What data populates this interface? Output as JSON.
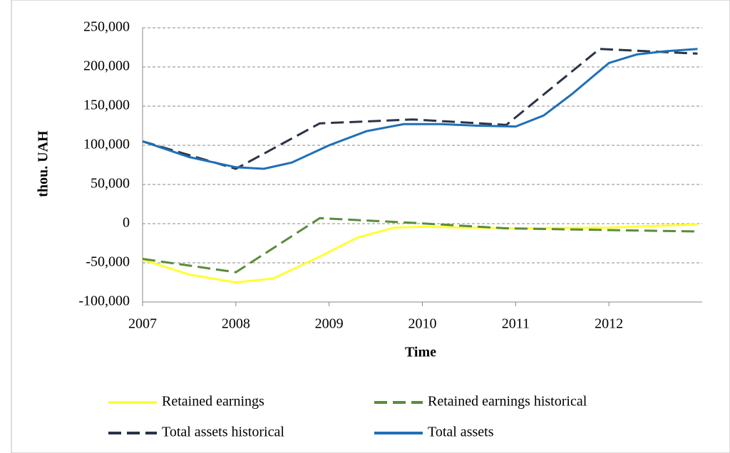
{
  "chart_data": {
    "type": "line",
    "xlabel": "Time",
    "ylabel": "thou. UAH",
    "xlim": [
      2007,
      2013
    ],
    "xticks": [
      2007,
      2008,
      2009,
      2010,
      2011,
      2012
    ],
    "ylim": [
      -100000,
      250000
    ],
    "yticks": [
      {
        "value": -100000,
        "label": "-100,000"
      },
      {
        "value": -50000,
        "label": "-50,000"
      },
      0,
      {
        "value": 50000,
        "label": "50,000"
      },
      {
        "value": 100000,
        "label": "100,000"
      },
      {
        "value": 150000,
        "label": "150,000"
      },
      {
        "value": 200000,
        "label": "200,000"
      },
      {
        "value": 250000,
        "label": "250,000"
      }
    ],
    "grid": true,
    "legend": "bottom",
    "series": [
      {
        "name": "Retained earnings",
        "color": "#ffff33",
        "style": "solid",
        "x": [
          2007,
          2007.5,
          2008,
          2008.4,
          2008.9,
          2009.3,
          2009.7,
          2010,
          2011,
          2012,
          2012.95
        ],
        "values": [
          -46000,
          -65000,
          -75000,
          -70000,
          -42000,
          -18000,
          -5000,
          -4000,
          -6000,
          -5000,
          -1000
        ]
      },
      {
        "name": "Retained earnings historical",
        "color": "#5b8c3a",
        "style": "dashed",
        "x": [
          2007,
          2008,
          2008.9,
          2009.9,
          2010.9,
          2011.9,
          2012.95
        ],
        "values": [
          -45000,
          -62000,
          7000,
          1000,
          -6000,
          -8000,
          -10000
        ]
      },
      {
        "name": "Total assets historical",
        "color": "#2b3347",
        "style": "dashed",
        "x": [
          2007,
          2008,
          2008.9,
          2009.9,
          2010.9,
          2011.9,
          2012.95
        ],
        "values": [
          105000,
          70000,
          128000,
          133000,
          126000,
          223000,
          217000
        ]
      },
      {
        "name": "Total assets",
        "color": "#1f6fb8",
        "style": "solid",
        "x": [
          2007,
          2007.5,
          2008,
          2008.3,
          2008.6,
          2009,
          2009.4,
          2009.8,
          2010.2,
          2010.6,
          2011,
          2011.3,
          2011.6,
          2012,
          2012.3,
          2012.6,
          2012.95
        ],
        "values": [
          105000,
          85000,
          72000,
          70000,
          78000,
          100000,
          118000,
          127000,
          127000,
          125000,
          124000,
          138000,
          165000,
          205000,
          216000,
          220000,
          223000
        ]
      }
    ]
  }
}
